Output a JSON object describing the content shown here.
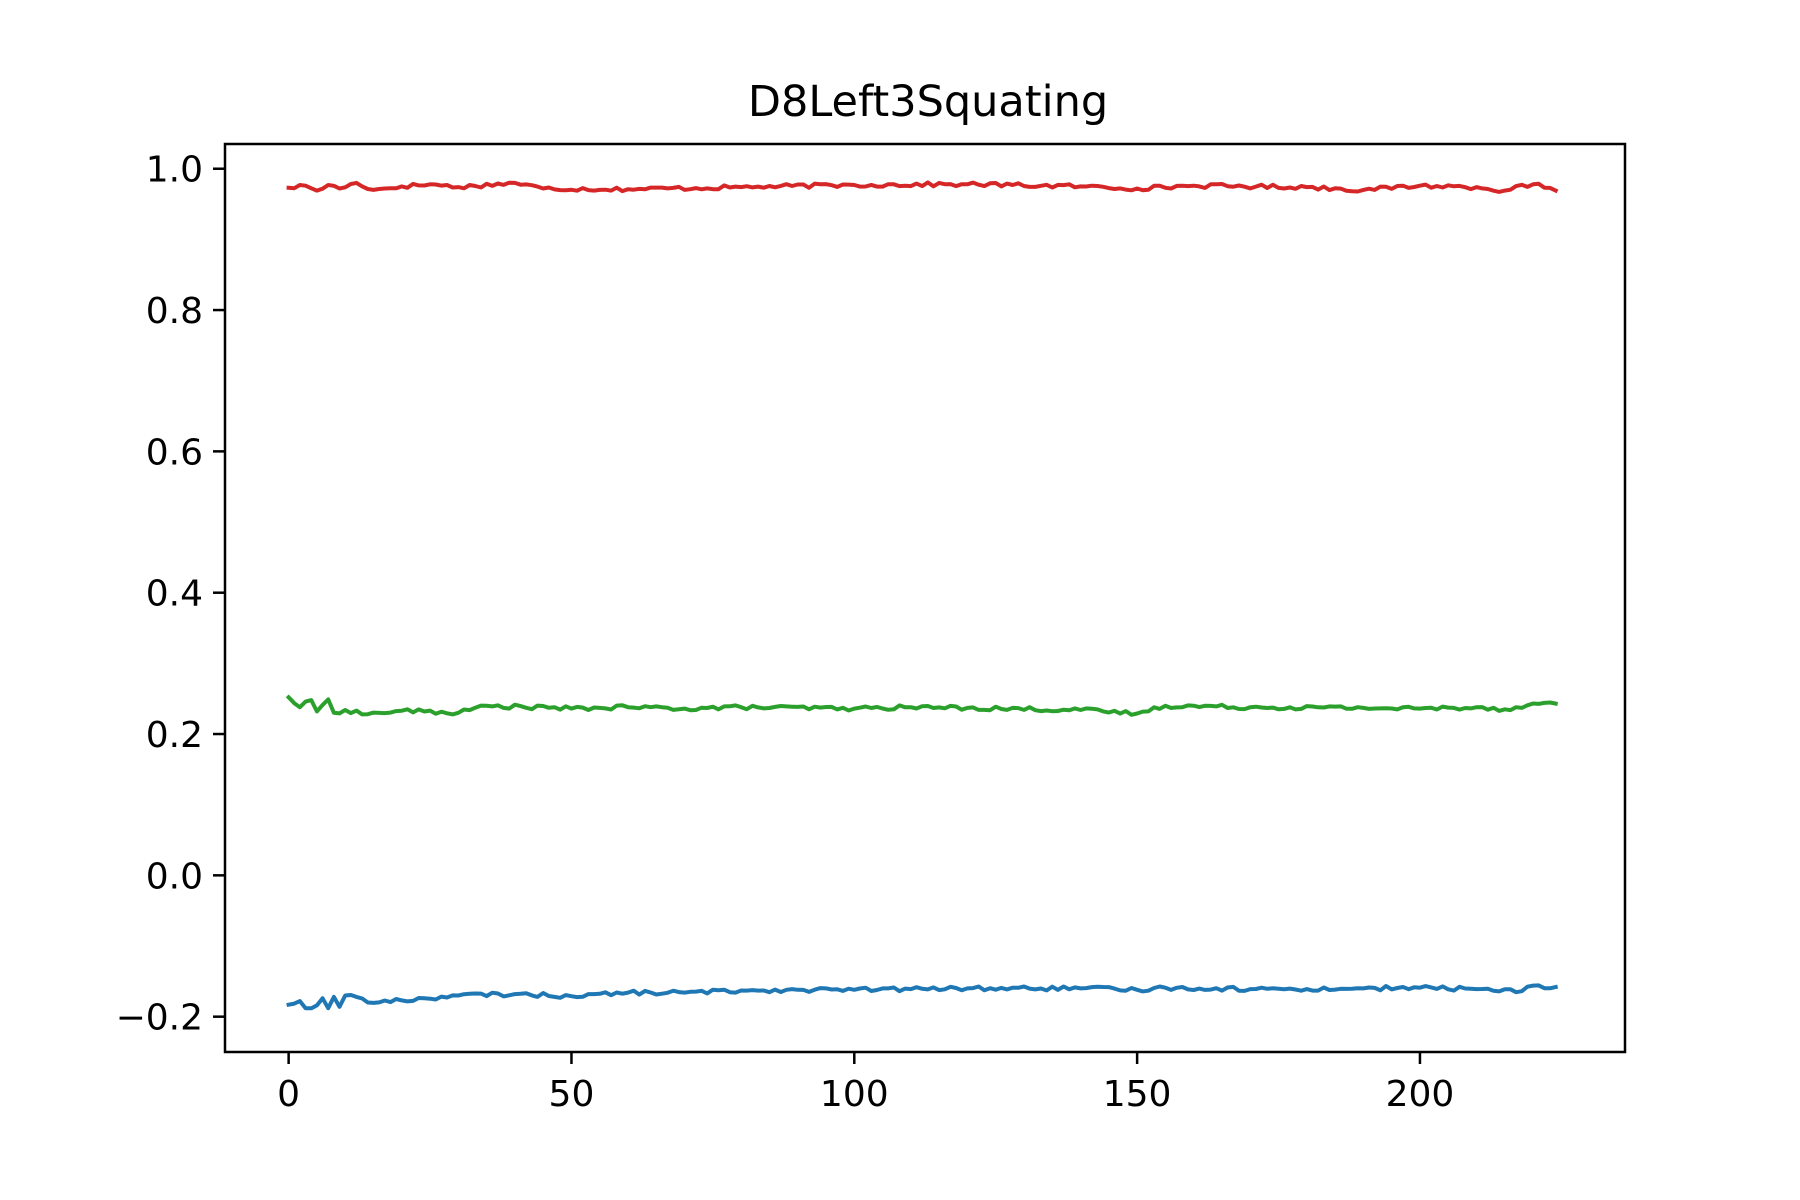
{
  "chart_data": {
    "type": "line",
    "title": "D8Left3Squating",
    "xlabel": "",
    "ylabel": "",
    "xlim": [
      -11.25,
      236.25
    ],
    "ylim": [
      -0.25,
      1.035
    ],
    "x_ticks": [
      0,
      50,
      100,
      150,
      200
    ],
    "x_tick_labels": [
      "0",
      "50",
      "100",
      "150",
      "200"
    ],
    "y_ticks": [
      -0.2,
      0.0,
      0.2,
      0.4,
      0.6,
      0.8,
      1.0
    ],
    "y_tick_labels": [
      "−0.2",
      "0.0",
      "0.2",
      "0.4",
      "0.6",
      "0.8",
      "1.0"
    ],
    "grid": false,
    "legend": "none",
    "x": {
      "start": 0,
      "end": 224,
      "step": 1
    },
    "series": [
      {
        "color": "#d62728",
        "description": "near-constant series around 0.975 with small jitter",
        "keypoints": [
          [
            0,
            0.973
          ],
          [
            3,
            0.976
          ],
          [
            5,
            0.969
          ],
          [
            7,
            0.977
          ],
          [
            9,
            0.972
          ],
          [
            12,
            0.98
          ],
          [
            15,
            0.97
          ],
          [
            20,
            0.975
          ],
          [
            25,
            0.978
          ],
          [
            30,
            0.974
          ],
          [
            40,
            0.98
          ],
          [
            45,
            0.972
          ],
          [
            60,
            0.971
          ],
          [
            80,
            0.974
          ],
          [
            100,
            0.977
          ],
          [
            120,
            0.978
          ],
          [
            140,
            0.975
          ],
          [
            150,
            0.972
          ],
          [
            160,
            0.976
          ],
          [
            180,
            0.974
          ],
          [
            190,
            0.97
          ],
          [
            200,
            0.976
          ],
          [
            210,
            0.974
          ],
          [
            215,
            0.969
          ],
          [
            220,
            0.978
          ],
          [
            224,
            0.969
          ]
        ]
      },
      {
        "color": "#2ca02c",
        "description": "near-constant series around 0.235 with small jitter",
        "keypoints": [
          [
            0,
            0.252
          ],
          [
            2,
            0.238
          ],
          [
            4,
            0.248
          ],
          [
            5,
            0.232
          ],
          [
            7,
            0.249
          ],
          [
            8,
            0.23
          ],
          [
            10,
            0.234
          ],
          [
            14,
            0.228
          ],
          [
            20,
            0.233
          ],
          [
            30,
            0.23
          ],
          [
            35,
            0.24
          ],
          [
            50,
            0.236
          ],
          [
            60,
            0.238
          ],
          [
            70,
            0.236
          ],
          [
            80,
            0.238
          ],
          [
            100,
            0.236
          ],
          [
            110,
            0.238
          ],
          [
            120,
            0.237
          ],
          [
            140,
            0.234
          ],
          [
            150,
            0.229
          ],
          [
            155,
            0.24
          ],
          [
            170,
            0.238
          ],
          [
            190,
            0.237
          ],
          [
            200,
            0.236
          ],
          [
            210,
            0.238
          ],
          [
            215,
            0.235
          ],
          [
            222,
            0.244
          ],
          [
            224,
            0.243
          ]
        ]
      },
      {
        "color": "#1f77b4",
        "description": "slowly rising series from about -0.183 to -0.157",
        "keypoints": [
          [
            0,
            -0.183
          ],
          [
            2,
            -0.178
          ],
          [
            3,
            -0.188
          ],
          [
            5,
            -0.184
          ],
          [
            6,
            -0.174
          ],
          [
            7,
            -0.188
          ],
          [
            8,
            -0.172
          ],
          [
            9,
            -0.186
          ],
          [
            10,
            -0.17
          ],
          [
            12,
            -0.172
          ],
          [
            14,
            -0.18
          ],
          [
            20,
            -0.177
          ],
          [
            30,
            -0.17
          ],
          [
            40,
            -0.168
          ],
          [
            50,
            -0.171
          ],
          [
            60,
            -0.166
          ],
          [
            70,
            -0.166
          ],
          [
            80,
            -0.163
          ],
          [
            90,
            -0.162
          ],
          [
            100,
            -0.162
          ],
          [
            110,
            -0.161
          ],
          [
            120,
            -0.16
          ],
          [
            140,
            -0.16
          ],
          [
            150,
            -0.162
          ],
          [
            155,
            -0.159
          ],
          [
            170,
            -0.161
          ],
          [
            180,
            -0.161
          ],
          [
            190,
            -0.16
          ],
          [
            200,
            -0.159
          ],
          [
            210,
            -0.161
          ],
          [
            218,
            -0.164
          ],
          [
            220,
            -0.156
          ],
          [
            224,
            -0.158
          ]
        ]
      }
    ]
  }
}
